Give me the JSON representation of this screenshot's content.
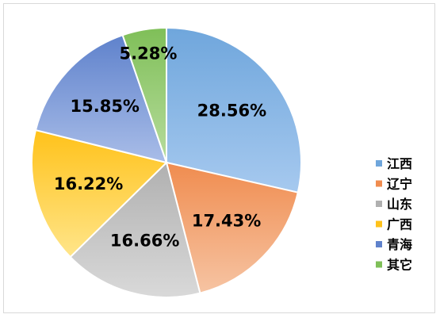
{
  "chart_data": {
    "type": "pie",
    "title": "",
    "categories": [
      "江西",
      "辽宁",
      "山东",
      "广西",
      "青海",
      "其它"
    ],
    "values": [
      28.56,
      17.43,
      16.66,
      16.22,
      15.85,
      5.28
    ],
    "labels": [
      "28.56%",
      "17.43%",
      "16.66%",
      "16.22%",
      "15.85%",
      "5.28%"
    ],
    "colors": [
      "#6fa6dc",
      "#f08c4f",
      "#b0b0b0",
      "#ffc21a",
      "#5f82cc",
      "#7fbf58"
    ],
    "colors_light": [
      "#a6c9ef",
      "#f6c4a3",
      "#d9d9d9",
      "#ffe58a",
      "#a9bde8",
      "#b7dc9d"
    ],
    "legend_position": "right"
  }
}
